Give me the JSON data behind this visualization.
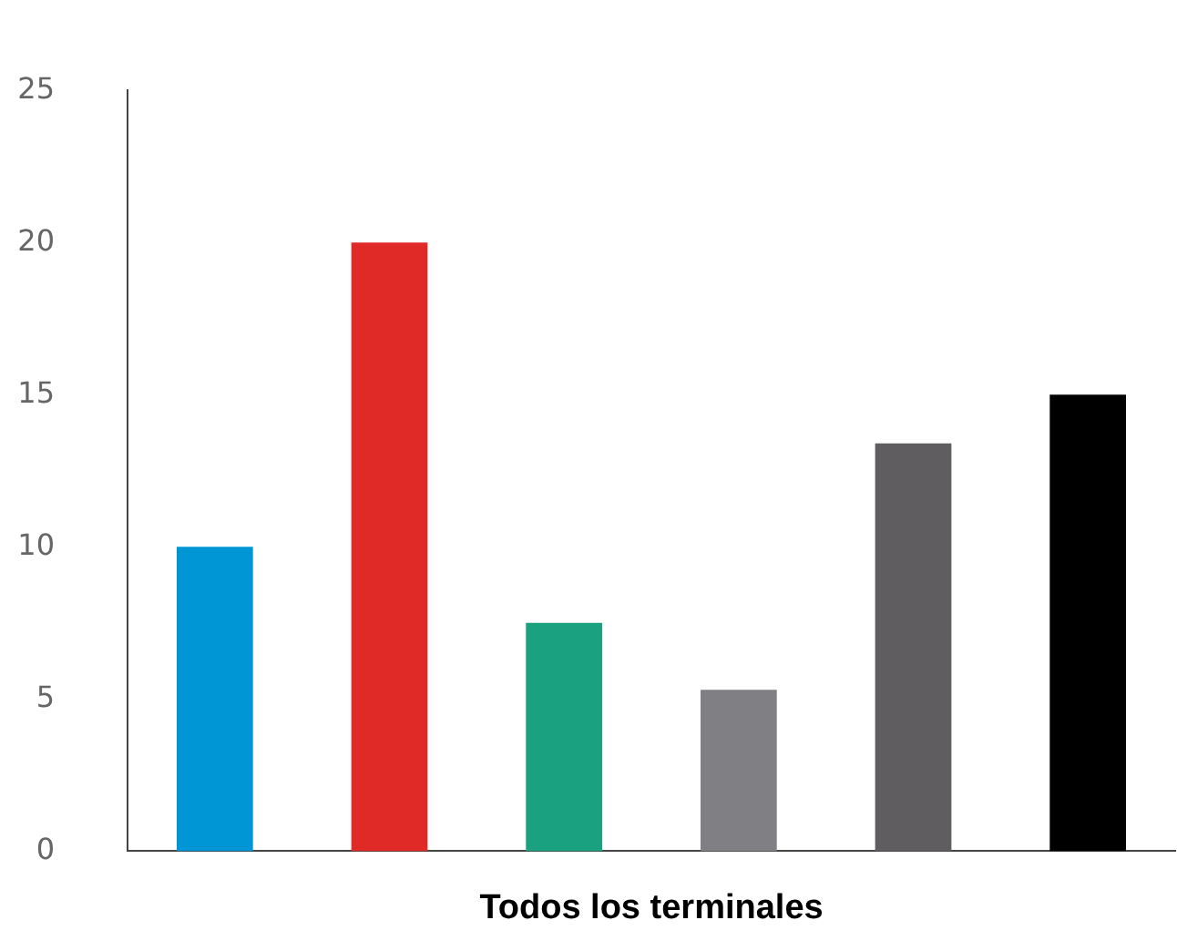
{
  "chart_data": {
    "type": "bar",
    "xlabel": "Todos los terminales",
    "categories": [
      null,
      null,
      null,
      null,
      null,
      null
    ],
    "values": [
      10,
      20,
      7.5,
      5.3,
      13.4,
      15
    ],
    "colors": [
      "#0096d6",
      "#e02a27",
      "#1aa280",
      "#808084",
      "#5f5d60",
      "#000000"
    ],
    "ylim": [
      0,
      25
    ],
    "yticks": [
      0,
      5,
      10,
      15,
      20,
      25
    ],
    "grid": false,
    "legend": false
  }
}
